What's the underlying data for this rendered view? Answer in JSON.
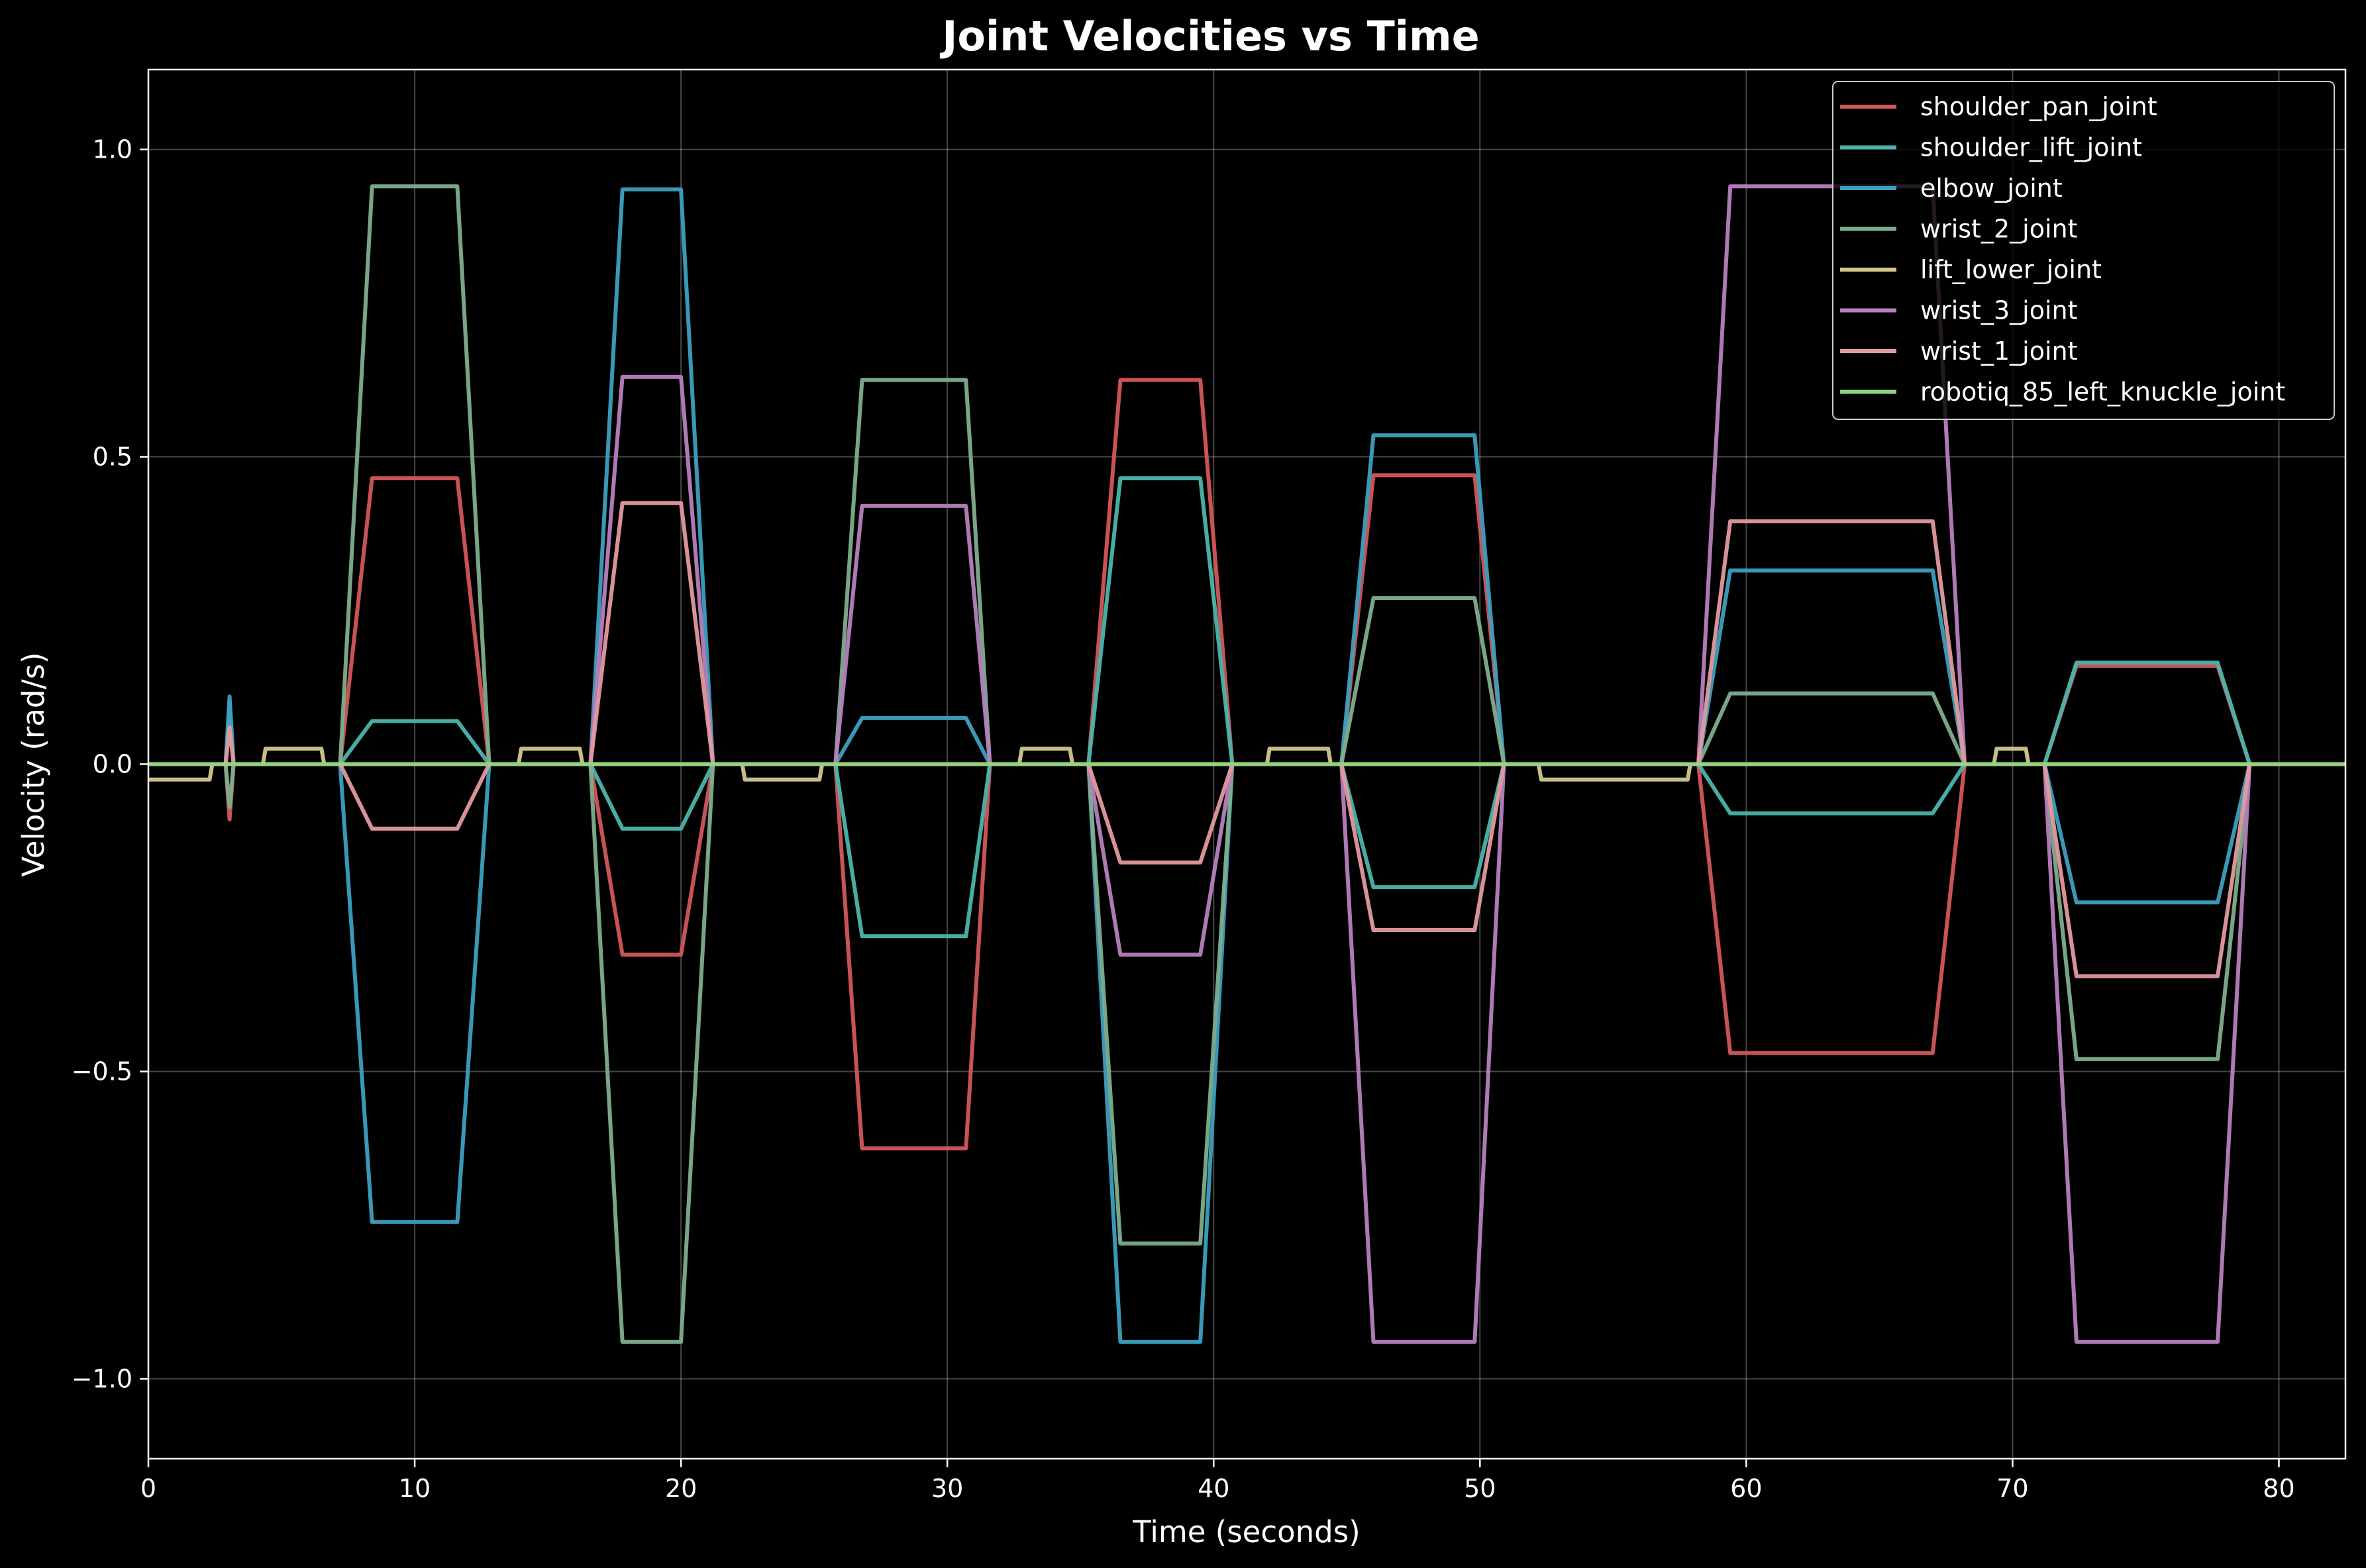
{
  "chart_data": {
    "type": "line",
    "title": "Joint Velocities vs Time",
    "xlabel": "Time (seconds)",
    "ylabel": "Velocity (rad/s)",
    "xlim": [
      0,
      82.5
    ],
    "ylim": [
      -1.13,
      1.13
    ],
    "xticks": [
      0,
      10,
      20,
      30,
      40,
      50,
      60,
      70,
      80
    ],
    "xtick_labels": [
      "0",
      "10",
      "20",
      "30",
      "40",
      "50",
      "60",
      "70",
      "80"
    ],
    "yticks": [
      -1.0,
      -0.5,
      0.0,
      0.5,
      1.0
    ],
    "ytick_labels": [
      "−1.0",
      "−0.5",
      "0.0",
      "0.5",
      "1.0"
    ],
    "grid": true,
    "legend_position": "top-right",
    "background": "#000000",
    "series": [
      {
        "name": "shoulder_pan_joint",
        "color": "#d2575a",
        "points": [
          [
            0,
            0
          ],
          [
            2.9,
            0
          ],
          [
            3.05,
            -0.09
          ],
          [
            3.2,
            0
          ],
          [
            7.2,
            0
          ],
          [
            8.4,
            0.465
          ],
          [
            11.6,
            0.465
          ],
          [
            12.8,
            0
          ],
          [
            16.6,
            0
          ],
          [
            17.8,
            -0.31
          ],
          [
            20,
            -0.31
          ],
          [
            21.2,
            0
          ],
          [
            25.8,
            0
          ],
          [
            26.8,
            -0.625
          ],
          [
            30.7,
            -0.625
          ],
          [
            31.6,
            0
          ],
          [
            35.3,
            0
          ],
          [
            36.5,
            0.625
          ],
          [
            39.5,
            0.625
          ],
          [
            40.7,
            0
          ],
          [
            44.8,
            0
          ],
          [
            46,
            0.47
          ],
          [
            49.8,
            0.47
          ],
          [
            50.9,
            0
          ],
          [
            58.2,
            0
          ],
          [
            59.4,
            -0.47
          ],
          [
            67,
            -0.47
          ],
          [
            68.2,
            0
          ],
          [
            71.2,
            0
          ],
          [
            72.4,
            0.16
          ],
          [
            77.7,
            0.16
          ],
          [
            78.9,
            0
          ],
          [
            82.5,
            0
          ]
        ]
      },
      {
        "name": "shoulder_lift_joint",
        "color": "#4ab5ad",
        "points": [
          [
            0,
            0
          ],
          [
            2.9,
            0
          ],
          [
            3.05,
            0.1
          ],
          [
            3.2,
            0
          ],
          [
            7.2,
            0
          ],
          [
            8.4,
            0.07
          ],
          [
            11.6,
            0.07
          ],
          [
            12.8,
            0
          ],
          [
            16.6,
            0
          ],
          [
            17.8,
            -0.105
          ],
          [
            20,
            -0.105
          ],
          [
            21.2,
            0
          ],
          [
            25.8,
            0
          ],
          [
            26.8,
            -0.28
          ],
          [
            30.7,
            -0.28
          ],
          [
            31.6,
            0
          ],
          [
            35.3,
            0
          ],
          [
            36.5,
            0.465
          ],
          [
            39.5,
            0.465
          ],
          [
            40.7,
            0
          ],
          [
            44.8,
            0
          ],
          [
            46,
            -0.2
          ],
          [
            49.8,
            -0.2
          ],
          [
            50.9,
            0
          ],
          [
            58.2,
            0
          ],
          [
            59.4,
            -0.08
          ],
          [
            67,
            -0.08
          ],
          [
            68.2,
            0
          ],
          [
            71.2,
            0
          ],
          [
            72.4,
            0.165
          ],
          [
            77.7,
            0.165
          ],
          [
            78.9,
            0
          ],
          [
            82.5,
            0
          ]
        ]
      },
      {
        "name": "elbow_joint",
        "color": "#3d9fbf",
        "points": [
          [
            0,
            0
          ],
          [
            2.9,
            0
          ],
          [
            3.05,
            0.11
          ],
          [
            3.2,
            0
          ],
          [
            7.2,
            0
          ],
          [
            8.4,
            -0.745
          ],
          [
            11.6,
            -0.745
          ],
          [
            12.8,
            0
          ],
          [
            16.6,
            0
          ],
          [
            17.8,
            0.935
          ],
          [
            20,
            0.935
          ],
          [
            21.2,
            0
          ],
          [
            25.8,
            0
          ],
          [
            26.8,
            0.075
          ],
          [
            30.7,
            0.075
          ],
          [
            31.6,
            0
          ],
          [
            35.3,
            0
          ],
          [
            36.5,
            -0.94
          ],
          [
            39.5,
            -0.94
          ],
          [
            40.7,
            0
          ],
          [
            44.8,
            0
          ],
          [
            46,
            0.535
          ],
          [
            49.8,
            0.535
          ],
          [
            50.9,
            0
          ],
          [
            58.2,
            0
          ],
          [
            59.4,
            0.315
          ],
          [
            67,
            0.315
          ],
          [
            68.2,
            0
          ],
          [
            71.2,
            0
          ],
          [
            72.4,
            -0.225
          ],
          [
            77.7,
            -0.225
          ],
          [
            78.9,
            0
          ],
          [
            82.5,
            0
          ]
        ]
      },
      {
        "name": "wrist_2_joint",
        "color": "#7fae8e",
        "points": [
          [
            0,
            0
          ],
          [
            2.9,
            0
          ],
          [
            3.05,
            -0.07
          ],
          [
            3.2,
            0
          ],
          [
            7.2,
            0
          ],
          [
            8.4,
            0.94
          ],
          [
            11.6,
            0.94
          ],
          [
            12.8,
            0
          ],
          [
            16.6,
            0
          ],
          [
            17.8,
            -0.94
          ],
          [
            20,
            -0.94
          ],
          [
            21.2,
            0
          ],
          [
            25.8,
            0
          ],
          [
            26.8,
            0.625
          ],
          [
            30.7,
            0.625
          ],
          [
            31.6,
            0
          ],
          [
            35.3,
            0
          ],
          [
            36.5,
            -0.78
          ],
          [
            39.5,
            -0.78
          ],
          [
            40.7,
            0
          ],
          [
            44.8,
            0
          ],
          [
            46,
            0.27
          ],
          [
            49.8,
            0.27
          ],
          [
            50.9,
            0
          ],
          [
            58.2,
            0
          ],
          [
            59.4,
            0.115
          ],
          [
            67,
            0.115
          ],
          [
            68.2,
            0
          ],
          [
            71.2,
            0
          ],
          [
            72.4,
            -0.48
          ],
          [
            77.7,
            -0.48
          ],
          [
            78.9,
            0
          ],
          [
            82.5,
            0
          ]
        ]
      },
      {
        "name": "lift_lower_joint",
        "color": "#d4c78e",
        "points": [
          [
            0,
            -0.025
          ],
          [
            2.3,
            -0.025
          ],
          [
            2.4,
            0
          ],
          [
            4.3,
            0
          ],
          [
            4.4,
            0.025
          ],
          [
            6.5,
            0.025
          ],
          [
            6.6,
            0
          ],
          [
            13.9,
            0
          ],
          [
            14,
            0.025
          ],
          [
            16.2,
            0.025
          ],
          [
            16.3,
            0
          ],
          [
            22.3,
            0
          ],
          [
            22.4,
            -0.025
          ],
          [
            25.2,
            -0.025
          ],
          [
            25.3,
            0
          ],
          [
            32.7,
            0
          ],
          [
            32.8,
            0.025
          ],
          [
            34.6,
            0.025
          ],
          [
            34.7,
            0
          ],
          [
            42,
            0
          ],
          [
            42.1,
            0.025
          ],
          [
            44.3,
            0.025
          ],
          [
            44.4,
            0
          ],
          [
            52.2,
            0
          ],
          [
            52.3,
            -0.025
          ],
          [
            57.8,
            -0.025
          ],
          [
            57.9,
            0
          ],
          [
            69.3,
            0
          ],
          [
            69.4,
            0.025
          ],
          [
            70.5,
            0.025
          ],
          [
            70.6,
            0
          ],
          [
            82.5,
            0
          ]
        ]
      },
      {
        "name": "wrist_3_joint",
        "color": "#b77fbe",
        "points": [
          [
            0,
            0
          ],
          [
            7.2,
            0
          ],
          [
            8.4,
            0
          ],
          [
            11.6,
            0
          ],
          [
            12.8,
            0
          ],
          [
            16.6,
            0
          ],
          [
            17.8,
            0.63
          ],
          [
            20,
            0.63
          ],
          [
            21.2,
            0
          ],
          [
            25.8,
            0
          ],
          [
            26.8,
            0.42
          ],
          [
            30.7,
            0.42
          ],
          [
            31.6,
            0
          ],
          [
            35.3,
            0
          ],
          [
            36.5,
            -0.31
          ],
          [
            39.5,
            -0.31
          ],
          [
            40.7,
            0
          ],
          [
            44.8,
            0
          ],
          [
            46,
            -0.94
          ],
          [
            49.8,
            -0.94
          ],
          [
            50.9,
            0
          ],
          [
            58.2,
            0
          ],
          [
            59.4,
            0.94
          ],
          [
            67,
            0.94
          ],
          [
            68.2,
            0
          ],
          [
            71.2,
            0
          ],
          [
            72.4,
            -0.94
          ],
          [
            77.7,
            -0.94
          ],
          [
            78.9,
            0
          ],
          [
            82.5,
            0
          ]
        ]
      },
      {
        "name": "wrist_1_joint",
        "color": "#e39a9f",
        "points": [
          [
            0,
            0
          ],
          [
            2.9,
            0
          ],
          [
            3.05,
            0.06
          ],
          [
            3.2,
            0
          ],
          [
            7.2,
            0
          ],
          [
            8.4,
            -0.105
          ],
          [
            11.6,
            -0.105
          ],
          [
            12.8,
            0
          ],
          [
            16.6,
            0
          ],
          [
            17.8,
            0.425
          ],
          [
            20,
            0.425
          ],
          [
            21.2,
            0
          ],
          [
            25.8,
            0
          ],
          [
            26.8,
            0
          ],
          [
            30.7,
            0
          ],
          [
            31.6,
            0
          ],
          [
            35.3,
            0
          ],
          [
            36.5,
            -0.16
          ],
          [
            39.5,
            -0.16
          ],
          [
            40.7,
            0
          ],
          [
            44.8,
            0
          ],
          [
            46,
            -0.27
          ],
          [
            49.8,
            -0.27
          ],
          [
            50.9,
            0
          ],
          [
            58.2,
            0
          ],
          [
            59.4,
            0.395
          ],
          [
            67,
            0.395
          ],
          [
            68.2,
            0
          ],
          [
            71.2,
            0
          ],
          [
            72.4,
            -0.345
          ],
          [
            77.7,
            -0.345
          ],
          [
            78.9,
            0
          ],
          [
            82.5,
            0
          ]
        ]
      },
      {
        "name": "robotiq_85_left_knuckle_joint",
        "color": "#90d67f",
        "points": [
          [
            0,
            0
          ],
          [
            82.5,
            0
          ]
        ]
      }
    ]
  }
}
